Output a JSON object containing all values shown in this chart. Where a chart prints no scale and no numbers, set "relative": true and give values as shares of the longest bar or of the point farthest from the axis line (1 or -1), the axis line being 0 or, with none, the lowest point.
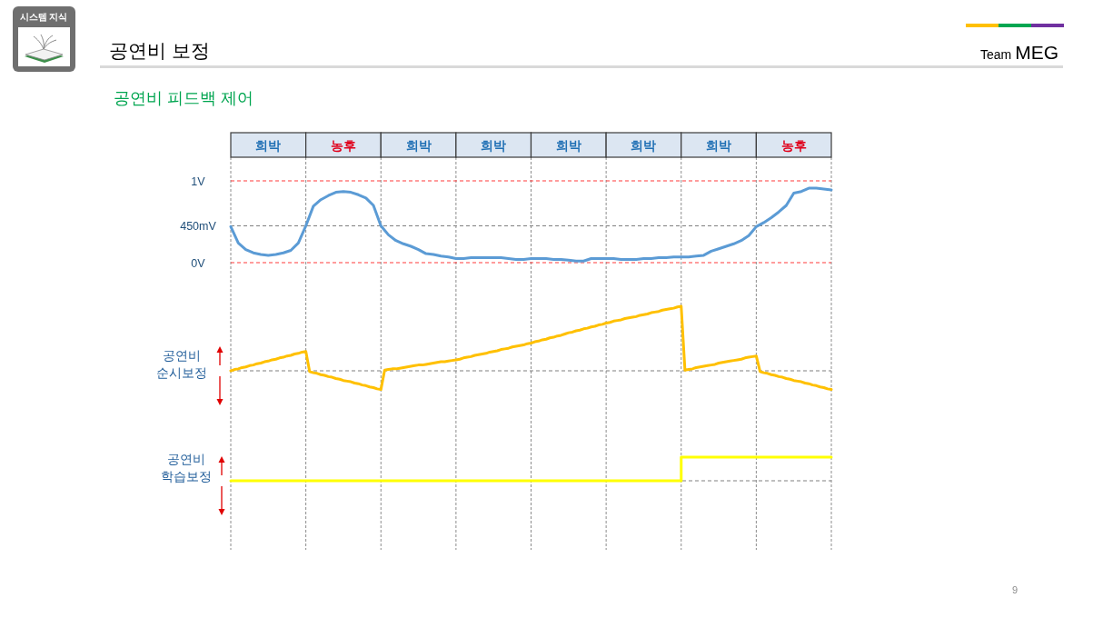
{
  "chart_data": [
    {
      "type": "other",
      "title": "공연비 보정",
      "subtitle": "공연비 피드백 제어",
      "annotations": [
        "시스템 지식",
        "Team MEG",
        "9"
      ],
      "categories": [
        "희박",
        "농후",
        "희박",
        "희박",
        "희박",
        "희박",
        "희박",
        "농후"
      ],
      "colors": [
        "#dce6f2",
        "#dce6f2",
        "#dce6f2",
        "#dce6f2",
        "#dce6f2",
        "#dce6f2",
        "#dce6f2",
        "#dce6f2"
      ]
    },
    {
      "type": "line",
      "categories": [
        null,
        null,
        null,
        null,
        null,
        null,
        null,
        null,
        null,
        null,
        null,
        null,
        null,
        null,
        null,
        null,
        null,
        null,
        null,
        null,
        null,
        null,
        null,
        null,
        null,
        null,
        null,
        null,
        null,
        null,
        null,
        null,
        null,
        null,
        null,
        null,
        null,
        null,
        null,
        null,
        null,
        null,
        null,
        null,
        null,
        null,
        null,
        null,
        null,
        null,
        null,
        null,
        null,
        null,
        null,
        null,
        null,
        null,
        null,
        null,
        null,
        null,
        null,
        null,
        null,
        null,
        null,
        null,
        null,
        null,
        null,
        null,
        null,
        null,
        null,
        null,
        null,
        null,
        null,
        null,
        null
      ],
      "ylim": [
        0,
        1
      ],
      "yticks": [
        {
          "value": 0,
          "label": "0V"
        },
        {
          "value": 1,
          "label": "1V"
        }
      ],
      "ref_lines": [
        {
          "axis": "y",
          "value": 1,
          "color": "#ff3b3b",
          "line_style": "dashed"
        },
        {
          "axis": "y",
          "value": 0.45,
          "label": "450mV",
          "color": "#808080",
          "line_style": "dashed"
        },
        {
          "axis": "y",
          "value": 0,
          "color": "#ff3b3b",
          "line_style": "dashed"
        }
      ],
      "series": [
        {
          "color": "#5b9bd5",
          "values": [
            0.44,
            0.24,
            0.16,
            0.12,
            0.1,
            0.09,
            0.1,
            0.12,
            0.15,
            0.24,
            0.45,
            0.69,
            0.77,
            0.82,
            0.86,
            0.87,
            0.86,
            0.83,
            0.79,
            0.7,
            0.45,
            0.34,
            0.27,
            0.23,
            0.2,
            0.16,
            0.11,
            0.1,
            0.08,
            0.07,
            0.05,
            0.05,
            0.06,
            0.06,
            0.06,
            0.06,
            0.06,
            0.05,
            0.04,
            0.04,
            0.05,
            0.05,
            0.05,
            0.04,
            0.04,
            0.03,
            0.02,
            0.02,
            0.05,
            0.05,
            0.05,
            0.05,
            0.04,
            0.04,
            0.04,
            0.05,
            0.05,
            0.06,
            0.06,
            0.07,
            0.07,
            0.07,
            0.08,
            0.09,
            0.14,
            0.17,
            0.2,
            0.23,
            0.27,
            0.33,
            0.44,
            0.49,
            0.55,
            0.62,
            0.7,
            0.85,
            0.87,
            0.91,
            0.91,
            0.9,
            0.89
          ]
        }
      ]
    },
    {
      "type": "line",
      "relative": true,
      "ylabel": "공연비\n순시보정",
      "categories": [
        null,
        null,
        null,
        null,
        null,
        null,
        null,
        null,
        null,
        null,
        null,
        null,
        null,
        null,
        null,
        null,
        null,
        null,
        null,
        null,
        null,
        null,
        null,
        null,
        null,
        null,
        null,
        null,
        null,
        null,
        null,
        null,
        null,
        null,
        null,
        null,
        null,
        null,
        null,
        null,
        null,
        null,
        null,
        null,
        null,
        null,
        null,
        null,
        null,
        null,
        null,
        null,
        null,
        null,
        null,
        null,
        null,
        null,
        null,
        null,
        null,
        null,
        null,
        null,
        null,
        null,
        null,
        null,
        null,
        null,
        null,
        null,
        null,
        null,
        null,
        null,
        null,
        null,
        null,
        null,
        null,
        null,
        null,
        null,
        null,
        null,
        null,
        null,
        null,
        null,
        null,
        null,
        null,
        null,
        null,
        null,
        null,
        null,
        null,
        null,
        null,
        null,
        null,
        null,
        null,
        null,
        null,
        null,
        null,
        null,
        null,
        null,
        null,
        null,
        null,
        null,
        null,
        null,
        null,
        null,
        null,
        null,
        null,
        null,
        null,
        null,
        null,
        null,
        null,
        null,
        null,
        null,
        null,
        null,
        null,
        null,
        null,
        null,
        null,
        null,
        null,
        null,
        null,
        null,
        null,
        null,
        null,
        null,
        null,
        null,
        null,
        null,
        null,
        null,
        null,
        null,
        null,
        null,
        null,
        null,
        null
      ],
      "ref_lines": [
        {
          "axis": "y",
          "value": 0,
          "color": "#808080",
          "line_style": "dashed"
        }
      ],
      "series": [
        {
          "color": "#ffc000",
          "values": [
            0,
            0.02,
            0.03,
            0.05,
            0.06,
            0.08,
            0.09,
            0.11,
            0.12,
            0.14,
            0.15,
            0.17,
            0.18,
            0.2,
            0.21,
            0.23,
            0.24,
            0.26,
            0.27,
            0.29,
            0.3,
            -0.01,
            -0.03,
            -0.04,
            -0.06,
            -0.07,
            -0.09,
            -0.1,
            -0.12,
            -0.13,
            -0.15,
            -0.16,
            -0.17,
            -0.19,
            -0.2,
            -0.22,
            -0.23,
            -0.25,
            -0.26,
            -0.28,
            -0.29,
            0.01,
            0.02,
            0.03,
            0.03,
            0.04,
            0.05,
            0.06,
            0.07,
            0.08,
            0.09,
            0.09,
            0.1,
            0.11,
            0.12,
            0.13,
            0.14,
            0.14,
            0.15,
            0.16,
            0.17,
            0.18,
            0.2,
            0.21,
            0.22,
            0.24,
            0.25,
            0.26,
            0.27,
            0.29,
            0.3,
            0.31,
            0.33,
            0.34,
            0.35,
            0.37,
            0.38,
            0.39,
            0.4,
            0.42,
            0.43,
            0.45,
            0.46,
            0.48,
            0.49,
            0.51,
            0.52,
            0.54,
            0.55,
            0.57,
            0.59,
            0.6,
            0.62,
            0.63,
            0.65,
            0.66,
            0.68,
            0.69,
            0.71,
            0.72,
            0.74,
            0.75,
            0.77,
            0.78,
            0.79,
            0.81,
            0.82,
            0.83,
            0.84,
            0.86,
            0.87,
            0.88,
            0.9,
            0.91,
            0.92,
            0.94,
            0.95,
            0.96,
            0.97,
            0.99,
            1,
            0.01,
            0.02,
            0.03,
            0.05,
            0.06,
            0.07,
            0.08,
            0.09,
            0.1,
            0.12,
            0.13,
            0.14,
            0.15,
            0.16,
            0.17,
            0.18,
            0.2,
            0.21,
            0.22,
            0.23,
            -0.01,
            -0.03,
            -0.04,
            -0.06,
            -0.07,
            -0.09,
            -0.1,
            -0.12,
            -0.13,
            -0.15,
            -0.16,
            -0.17,
            -0.19,
            -0.2,
            -0.22,
            -0.23,
            -0.25,
            -0.26,
            -0.28,
            -0.29
          ]
        }
      ]
    },
    {
      "type": "step",
      "relative": true,
      "ylabel": "공연비\n학습보정",
      "categories": [
        null,
        null,
        null,
        null,
        null,
        null,
        null,
        null,
        null
      ],
      "ref_lines": [
        {
          "axis": "y",
          "value": 0,
          "color": "#808080",
          "line_style": "dashed"
        }
      ],
      "series": [
        {
          "color": "#ffff00",
          "values": [
            0,
            0,
            0,
            0,
            0,
            0,
            1,
            1,
            1
          ]
        }
      ]
    }
  ]
}
